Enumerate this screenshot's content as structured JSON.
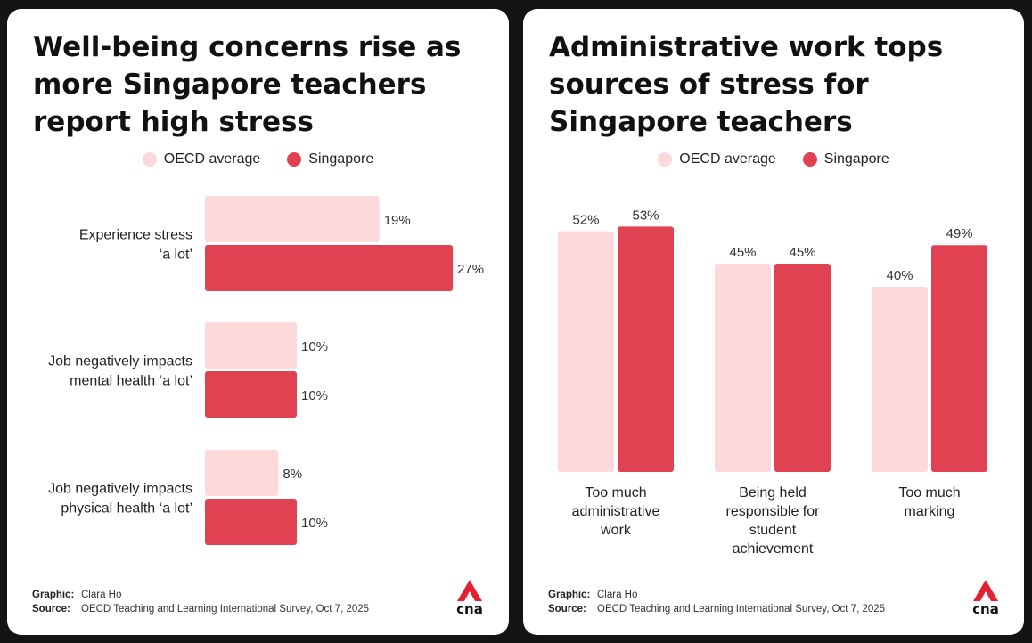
{
  "colors": {
    "oecd": "#fcd9da",
    "singapore": "#e04252"
  },
  "logo_text": "cna",
  "left": {
    "title": "Well-being concerns rise as more Singapore teachers report high stress",
    "legend": [
      "OECD average",
      "Singapore"
    ],
    "graphic_label": "Graphic:",
    "graphic_value": "Clara Ho",
    "source_label": "Source:",
    "source_value": "OECD Teaching and Learning International Survey, Oct 7, 2025"
  },
  "right": {
    "title": "Administrative work tops sources of stress for Singapore teachers",
    "legend": [
      "OECD average",
      "Singapore"
    ],
    "graphic_label": "Graphic:",
    "graphic_value": "Clara Ho",
    "source_label": "Source:",
    "source_value": "OECD Teaching and Learning International Survey, Oct 7, 2025"
  },
  "chart_data": [
    {
      "type": "bar",
      "orientation": "horizontal",
      "title": "Well-being concerns rise as more Singapore teachers report high stress",
      "categories": [
        [
          "Experience stress",
          "‘a lot’"
        ],
        [
          "Job negatively impacts",
          "mental health ‘a lot’"
        ],
        [
          "Job negatively impacts",
          "physical health ‘a lot’"
        ]
      ],
      "series": [
        {
          "name": "OECD average",
          "values": [
            19,
            10,
            8
          ],
          "labels": [
            "19%",
            "10%",
            "8%"
          ]
        },
        {
          "name": "Singapore",
          "values": [
            27,
            10,
            10
          ],
          "labels": [
            "27%",
            "10%",
            "10%"
          ]
        }
      ],
      "unit": "%",
      "grid": false,
      "legend_position": "top-center"
    },
    {
      "type": "bar",
      "orientation": "vertical",
      "title": "Administrative work tops sources of stress for Singapore teachers",
      "categories": [
        [
          "Too much",
          "administrative",
          "work"
        ],
        [
          "Being held",
          "responsible for",
          "student",
          "achievement"
        ],
        [
          "Too much",
          "marking"
        ]
      ],
      "series": [
        {
          "name": "OECD average",
          "values": [
            52,
            45,
            40
          ],
          "labels": [
            "52%",
            "45%",
            "40%"
          ]
        },
        {
          "name": "Singapore",
          "values": [
            53,
            45,
            49
          ],
          "labels": [
            "53%",
            "45%",
            "49%"
          ]
        }
      ],
      "unit": "%",
      "grid": false,
      "legend_position": "top-center"
    }
  ]
}
